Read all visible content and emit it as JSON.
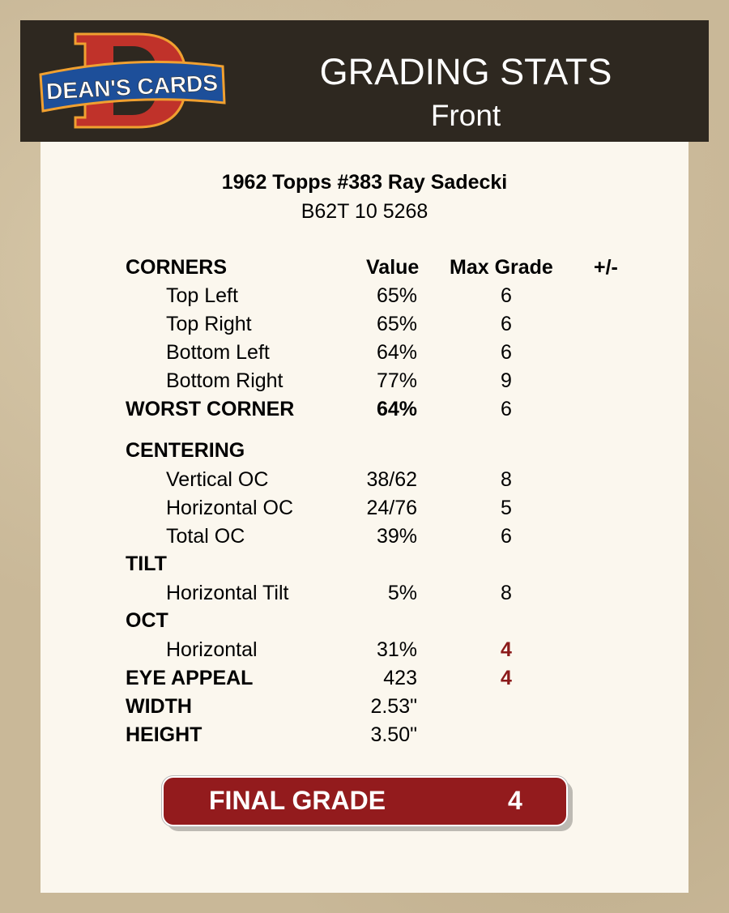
{
  "header": {
    "logo_text": "DEAN'S CARDS",
    "title": "GRADING STATS",
    "subtitle": "Front"
  },
  "card": {
    "title": "1962 Topps #383 Ray Sadecki",
    "code": "B62T 10 5268"
  },
  "columns": {
    "value": "Value",
    "max_grade": "Max Grade",
    "plus_minus": "+/-"
  },
  "rows": [
    {
      "label": "CORNERS",
      "type": "section",
      "value": "",
      "grade": ""
    },
    {
      "label": "Top Left",
      "type": "item",
      "value": "65%",
      "grade": "6"
    },
    {
      "label": "Top Right",
      "type": "item",
      "value": "65%",
      "grade": "6"
    },
    {
      "label": "Bottom Left",
      "type": "item",
      "value": "64%",
      "grade": "6"
    },
    {
      "label": "Bottom Right",
      "type": "item",
      "value": "77%",
      "grade": "9"
    },
    {
      "label": "WORST CORNER",
      "type": "section",
      "value": "64%",
      "value_bold": true,
      "grade": "6"
    },
    {
      "label": "CENTERING",
      "type": "section",
      "value": "",
      "grade": ""
    },
    {
      "label": "Vertical OC",
      "type": "item",
      "value": "38/62",
      "grade": "8"
    },
    {
      "label": "Horizontal OC",
      "type": "item",
      "value": "24/76",
      "grade": "5"
    },
    {
      "label": "Total OC",
      "type": "item",
      "value": "39%",
      "grade": "6"
    },
    {
      "label": "TILT",
      "type": "section",
      "value": "",
      "grade": ""
    },
    {
      "label": "Horizontal Tilt",
      "type": "item",
      "value": "5%",
      "grade": "8"
    },
    {
      "label": "OCT",
      "type": "section",
      "value": "",
      "grade": ""
    },
    {
      "label": "Horizontal",
      "type": "item",
      "value": "31%",
      "grade": "4",
      "grade_highlight": true
    },
    {
      "label": "EYE APPEAL",
      "type": "section",
      "value": "423",
      "grade": "4",
      "grade_highlight": true
    },
    {
      "label": "WIDTH",
      "type": "section",
      "value": "2.53\"",
      "grade": ""
    },
    {
      "label": "HEIGHT",
      "type": "section",
      "value": "3.50\"",
      "grade": ""
    }
  ],
  "final": {
    "label": "FINAL GRADE",
    "value": "4"
  },
  "colors": {
    "header_bg": "#2e2820",
    "card_bg": "#fbf7ee",
    "accent_red": "#931b1d",
    "highlight_grade": "#8b1a1a"
  }
}
